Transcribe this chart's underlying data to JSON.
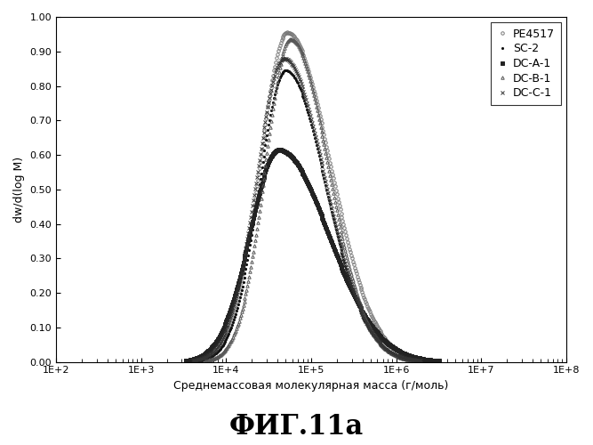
{
  "xlabel": "Среднемассовая молекулярная масса (г/моль)",
  "ylabel": "dw/d(log M)",
  "caption": "ФИГ.11a",
  "yticks": [
    0.0,
    0.1,
    0.2,
    0.3,
    0.4,
    0.5,
    0.6,
    0.7,
    0.8,
    0.9,
    1.0
  ],
  "series_params": [
    {
      "name": "PE4517",
      "marker": "o",
      "ms": 2.5,
      "color": "#777777",
      "fillstyle": "none",
      "peak_log": 4.72,
      "peak_val": 0.955,
      "sig_l": 0.32,
      "sig_r": 0.5
    },
    {
      "name": "SC-2",
      "marker": ".",
      "ms": 3,
      "color": "#111111",
      "fillstyle": "full",
      "peak_log": 4.7,
      "peak_val": 0.845,
      "sig_l": 0.31,
      "sig_r": 0.47
    },
    {
      "name": "DC-A-1",
      "marker": "s",
      "ms": 2.5,
      "color": "#222222",
      "fillstyle": "full",
      "peak_log": 4.62,
      "peak_val": 0.615,
      "sig_l": 0.34,
      "sig_r": 0.58
    },
    {
      "name": "DC-B-1",
      "marker": "^",
      "ms": 2.5,
      "color": "#555555",
      "fillstyle": "none",
      "peak_log": 4.76,
      "peak_val": 0.935,
      "sig_l": 0.3,
      "sig_r": 0.44
    },
    {
      "name": "DC-C-1",
      "marker": "x",
      "ms": 3,
      "color": "#333333",
      "fillstyle": "full",
      "peak_log": 4.68,
      "peak_val": 0.88,
      "sig_l": 0.32,
      "sig_r": 0.48
    }
  ],
  "bg_color": "#f0f0f0",
  "legend_fontsize": 9,
  "axis_fontsize": 9,
  "tick_fontsize": 8,
  "step": 5
}
